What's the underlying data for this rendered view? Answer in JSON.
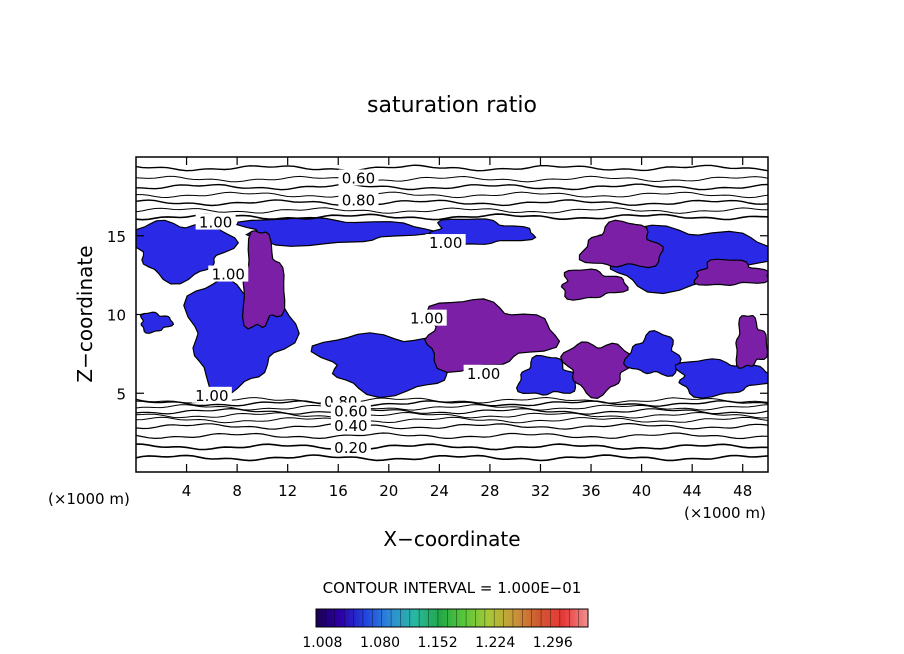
{
  "chart_data": {
    "type": "heatmap",
    "title": "saturation ratio",
    "xlabel": "X−coordinate",
    "ylabel": "Z−coordinate",
    "x_unit_label": "(×1000 m)",
    "z_unit_label": "(×1000 m)",
    "xlim": [
      0,
      50
    ],
    "ylim": [
      0,
      20
    ],
    "x_ticks": [
      4,
      8,
      12,
      16,
      20,
      24,
      28,
      32,
      36,
      40,
      44,
      48
    ],
    "y_ticks": [
      5,
      10,
      15
    ],
    "contour_interval_text": "CONTOUR INTERVAL =  1.000E−01",
    "contour_labels": [
      {
        "text": "0.60",
        "x": 17.6,
        "z": 18.7
      },
      {
        "text": "0.80",
        "x": 17.6,
        "z": 17.3
      },
      {
        "text": "1.00",
        "x": 6.3,
        "z": 15.9
      },
      {
        "text": "1.00",
        "x": 24.5,
        "z": 14.6
      },
      {
        "text": "1.00",
        "x": 7.3,
        "z": 12.6
      },
      {
        "text": "1.00",
        "x": 23.0,
        "z": 9.8
      },
      {
        "text": "1.00",
        "x": 27.5,
        "z": 6.3
      },
      {
        "text": "1.00",
        "x": 6.0,
        "z": 4.9
      },
      {
        "text": "0.80",
        "x": 16.2,
        "z": 4.5
      },
      {
        "text": "0.60",
        "x": 17.0,
        "z": 3.9
      },
      {
        "text": "0.40",
        "x": 17.0,
        "z": 3.0
      },
      {
        "text": "0.20",
        "x": 17.0,
        "z": 1.6
      }
    ],
    "colorbar": {
      "labels": [
        "1.008",
        "1.080",
        "1.152",
        "1.224",
        "1.296"
      ],
      "range": [
        1.0,
        1.34
      ],
      "colors": [
        "#1a0050",
        "#2c00a8",
        "#2244e0",
        "#2d8cd8",
        "#28b8a0",
        "#22a848",
        "#58c838",
        "#a8c838",
        "#c89838",
        "#d05830",
        "#e83838",
        "#f09090"
      ]
    },
    "fill_colors": {
      "supersaturated_low": "#2a2ae6",
      "supersaturated_high": "#7a1fa6"
    }
  }
}
